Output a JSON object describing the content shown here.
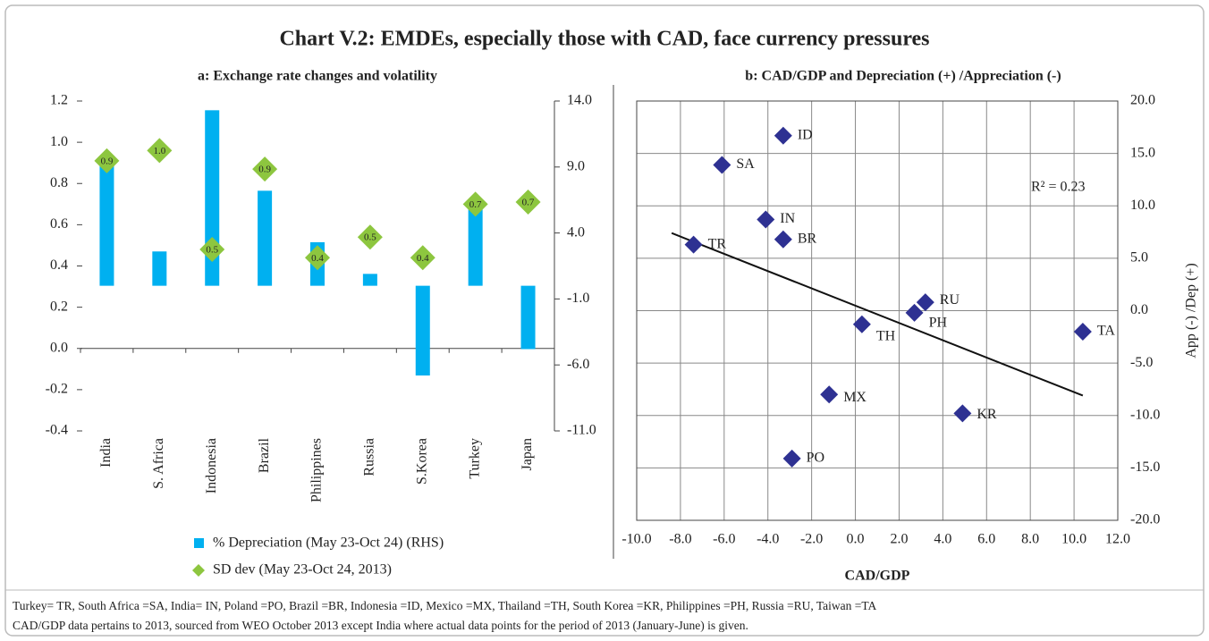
{
  "title": "Chart V.2: EMDEs, especially those with CAD, face currency pressures",
  "chart_data": [
    {
      "type": "bar",
      "subtitle": "a: Exchange rate changes and volatility",
      "categories": [
        "India",
        "S. Africa",
        "Indonesia",
        "Brazil",
        "Philippines",
        "Russia",
        "S.Korea",
        "Turkey",
        "Japan"
      ],
      "series": [
        {
          "name": "% Depreciation (May 23-Oct 24) (RHS)",
          "type": "bar",
          "axis": "y2",
          "color": "#00b0f0",
          "values": [
            9.5,
            2.6,
            13.3,
            7.2,
            3.3,
            0.9,
            -6.8,
            6.4,
            -4.8
          ]
        },
        {
          "name": "SD dev (May 23-Oct 24, 2013)",
          "type": "scatter",
          "marker": "diamond",
          "color": "#8dc63f",
          "values": [
            0.91,
            0.96,
            0.48,
            0.87,
            0.44,
            0.54,
            0.44,
            0.7,
            0.71
          ],
          "value_labels": [
            "0.9",
            "1.0",
            "0.5",
            "0.9",
            "0.4",
            "0.5",
            "0.4",
            "0.7",
            "0.7"
          ]
        }
      ],
      "ylim": [
        -0.4,
        1.2
      ],
      "yticks": [
        -0.4,
        -0.2,
        {
          "value": 0,
          "label": "0.0"
        },
        0.2,
        0.4,
        0.6,
        0.8,
        {
          "value": 1,
          "label": "1.0"
        },
        1.2
      ],
      "y2lim": [
        -11,
        14
      ],
      "y2ticks": [
        {
          "value": -11,
          "label": "-11.0"
        },
        {
          "value": -6,
          "label": "-6.0"
        },
        {
          "value": -1,
          "label": "-1.0"
        },
        {
          "value": 4,
          "label": "4.0"
        },
        {
          "value": 9,
          "label": "9.0"
        },
        {
          "value": 14,
          "label": "14.0"
        }
      ]
    },
    {
      "type": "scatter",
      "subtitle": "b: CAD/GDP  and Depreciation (+) /Appreciation (-)",
      "x_label": "CAD/GDP",
      "y_label": "App (-) /Dep (+)",
      "y_axis_side": "right",
      "grid": true,
      "marker": "diamond",
      "color": "#2e3192",
      "labels": [
        "ID",
        "SA",
        "IN",
        "BR",
        "TR",
        "RU",
        "PH",
        "TH",
        "TA",
        "MX",
        "KR",
        "PO"
      ],
      "x": [
        -3.3,
        -6.1,
        -4.1,
        -3.3,
        -7.4,
        3.2,
        2.7,
        0.3,
        10.4,
        -1.2,
        4.9,
        -2.9
      ],
      "values": [
        16.7,
        13.9,
        8.7,
        6.8,
        6.3,
        0.8,
        -0.2,
        -1.3,
        -2.0,
        -8.0,
        -9.8,
        -14.1
      ],
      "trendline": {
        "x": [
          -8.4,
          10.4
        ],
        "values": [
          7.4,
          -8.1
        ]
      },
      "annotation": "R² = 0.23",
      "xlim": [
        -10,
        12
      ],
      "xticks": [
        {
          "value": -10,
          "label": "-10.0"
        },
        {
          "value": -8,
          "label": "-8.0"
        },
        {
          "value": -6,
          "label": "-6.0"
        },
        {
          "value": -4,
          "label": "-4.0"
        },
        {
          "value": -2,
          "label": "-2.0"
        },
        {
          "value": 0,
          "label": "0.0"
        },
        {
          "value": 2,
          "label": "2.0"
        },
        {
          "value": 4,
          "label": "4.0"
        },
        {
          "value": 6,
          "label": "6.0"
        },
        {
          "value": 8,
          "label": "8.0"
        },
        {
          "value": 10,
          "label": "10.0"
        },
        {
          "value": 12,
          "label": "12.0"
        }
      ],
      "ylim": [
        -20,
        20
      ],
      "yticks": [
        {
          "value": -20,
          "label": "-20.0"
        },
        {
          "value": -15,
          "label": "-15.0"
        },
        {
          "value": -10,
          "label": "-10.0"
        },
        {
          "value": -5,
          "label": "-5.0"
        },
        {
          "value": 0,
          "label": "0.0"
        },
        {
          "value": 5,
          "label": "5.0"
        },
        {
          "value": 10,
          "label": "10.0"
        },
        {
          "value": 15,
          "label": "15.0"
        },
        {
          "value": 20,
          "label": "20.0"
        }
      ]
    }
  ],
  "footnotes": [
    "Turkey= TR, South Africa =SA, India= IN, Poland =PO, Brazil =BR, Indonesia =ID, Mexico =MX, Thailand =TH, South Korea =KR, Philippines =PH, Russia =RU, Taiwan =TA",
    "CAD/GDP data pertains to 2013, sourced from WEO October 2013 except India where actual data points for the period of 2013 (January-June) is given."
  ]
}
